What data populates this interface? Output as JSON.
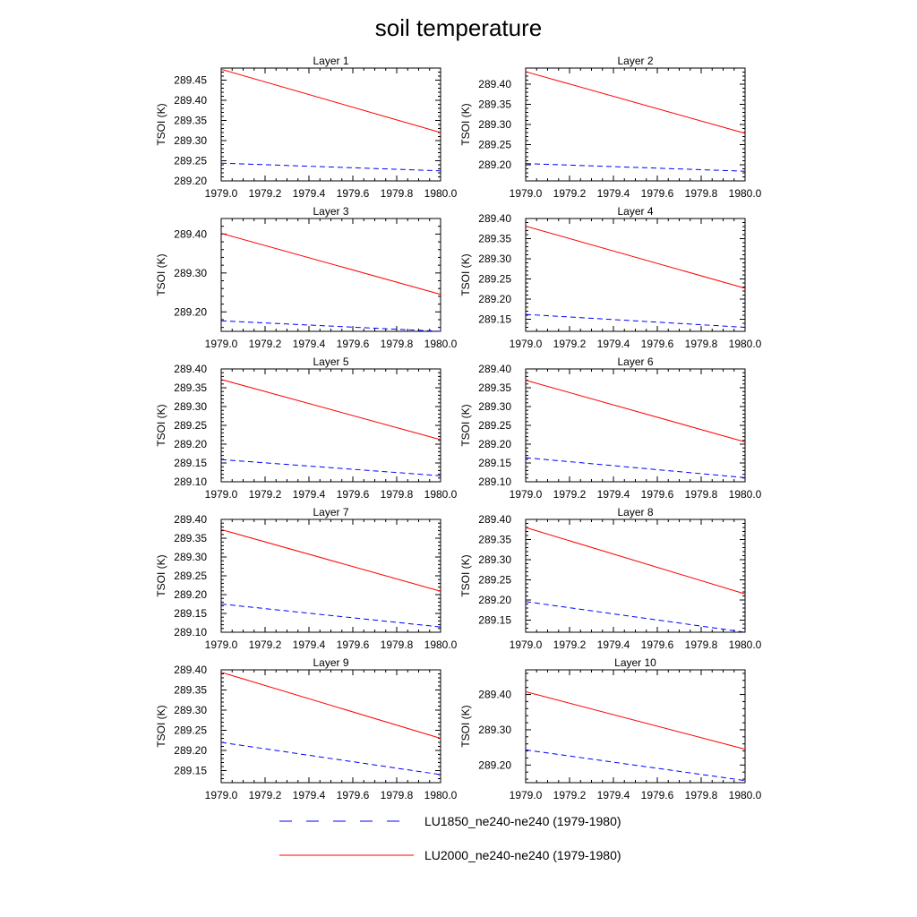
{
  "title": "soil temperature",
  "legend": {
    "placement": "bottom",
    "entries": [
      {
        "label": "LU1850_ne240-ne240 (1979-1980)",
        "color": "#0000ff",
        "dash": "dashed"
      },
      {
        "label": "LU2000_ne240-ne240 (1979-1980)",
        "color": "#ff0000",
        "dash": "solid"
      }
    ]
  },
  "chart_data": [
    {
      "type": "line",
      "title": "Layer 1",
      "ylabel": "TSOI  (K)",
      "x": [
        1979.0,
        1980.0
      ],
      "xlim": [
        1979.0,
        1980.0
      ],
      "xticks": [
        "1979.0",
        "1979.2",
        "1979.4",
        "1979.6",
        "1979.8",
        "1980.0"
      ],
      "ylim": [
        289.2,
        289.48
      ],
      "yticks": [
        "289.20",
        "289.25",
        "289.30",
        "289.35",
        "289.40",
        "289.45"
      ],
      "series": [
        {
          "name": "LU1850_ne240-ne240 (1979-1980)",
          "values": [
            289.244,
            289.225
          ]
        },
        {
          "name": "LU2000_ne240-ne240 (1979-1980)",
          "values": [
            289.477,
            289.32
          ]
        }
      ]
    },
    {
      "type": "line",
      "title": "Layer 2",
      "ylabel": "TSOI  (K)",
      "x": [
        1979.0,
        1980.0
      ],
      "xlim": [
        1979.0,
        1980.0
      ],
      "xticks": [
        "1979.0",
        "1979.2",
        "1979.4",
        "1979.6",
        "1979.8",
        "1980.0"
      ],
      "ylim": [
        289.16,
        289.44
      ],
      "yticks": [
        "289.20",
        "289.25",
        "289.30",
        "289.35",
        "289.40"
      ],
      "series": [
        {
          "name": "LU1850_ne240-ne240 (1979-1980)",
          "values": [
            289.203,
            289.184
          ]
        },
        {
          "name": "LU2000_ne240-ne240 (1979-1980)",
          "values": [
            289.431,
            289.278
          ]
        }
      ]
    },
    {
      "type": "line",
      "title": "Layer 3",
      "ylabel": "TSOI  (K)",
      "x": [
        1979.0,
        1980.0
      ],
      "xlim": [
        1979.0,
        1980.0
      ],
      "xticks": [
        "1979.0",
        "1979.2",
        "1979.4",
        "1979.6",
        "1979.8",
        "1980.0"
      ],
      "ylim": [
        289.15,
        289.44
      ],
      "yticks": [
        "289.20",
        "289.30",
        "289.40"
      ],
      "series": [
        {
          "name": "LU1850_ne240-ne240 (1979-1980)",
          "values": [
            289.177,
            289.15
          ]
        },
        {
          "name": "LU2000_ne240-ne240 (1979-1980)",
          "values": [
            289.402,
            289.245
          ]
        }
      ]
    },
    {
      "type": "line",
      "title": "Layer 4",
      "ylabel": "TSOI  (K)",
      "x": [
        1979.0,
        1980.0
      ],
      "xlim": [
        1979.0,
        1980.0
      ],
      "xticks": [
        "1979.0",
        "1979.2",
        "1979.4",
        "1979.6",
        "1979.8",
        "1980.0"
      ],
      "ylim": [
        289.12,
        289.4
      ],
      "yticks": [
        "289.15",
        "289.20",
        "289.25",
        "289.30",
        "289.35",
        "289.40"
      ],
      "series": [
        {
          "name": "LU1850_ne240-ne240 (1979-1980)",
          "values": [
            289.162,
            289.13
          ]
        },
        {
          "name": "LU2000_ne240-ne240 (1979-1980)",
          "values": [
            289.381,
            289.227
          ]
        }
      ]
    },
    {
      "type": "line",
      "title": "Layer 5",
      "ylabel": "TSOI  (K)",
      "x": [
        1979.0,
        1980.0
      ],
      "xlim": [
        1979.0,
        1980.0
      ],
      "xticks": [
        "1979.0",
        "1979.2",
        "1979.4",
        "1979.6",
        "1979.8",
        "1980.0"
      ],
      "ylim": [
        289.1,
        289.4
      ],
      "yticks": [
        "289.10",
        "289.15",
        "289.20",
        "289.25",
        "289.30",
        "289.35",
        "289.40"
      ],
      "series": [
        {
          "name": "LU1850_ne240-ne240 (1979-1980)",
          "values": [
            289.159,
            289.116
          ]
        },
        {
          "name": "LU2000_ne240-ne240 (1979-1980)",
          "values": [
            289.372,
            289.212
          ]
        }
      ]
    },
    {
      "type": "line",
      "title": "Layer 6",
      "ylabel": "TSOI  (K)",
      "x": [
        1979.0,
        1980.0
      ],
      "xlim": [
        1979.0,
        1980.0
      ],
      "xticks": [
        "1979.0",
        "1979.2",
        "1979.4",
        "1979.6",
        "1979.8",
        "1980.0"
      ],
      "ylim": [
        289.1,
        289.4
      ],
      "yticks": [
        "289.10",
        "289.15",
        "289.20",
        "289.25",
        "289.30",
        "289.35",
        "289.40"
      ],
      "series": [
        {
          "name": "LU1850_ne240-ne240 (1979-1980)",
          "values": [
            289.164,
            289.111
          ]
        },
        {
          "name": "LU2000_ne240-ne240 (1979-1980)",
          "values": [
            289.37,
            289.206
          ]
        }
      ]
    },
    {
      "type": "line",
      "title": "Layer 7",
      "ylabel": "TSOI  (K)",
      "x": [
        1979.0,
        1980.0
      ],
      "xlim": [
        1979.0,
        1980.0
      ],
      "xticks": [
        "1979.0",
        "1979.2",
        "1979.4",
        "1979.6",
        "1979.8",
        "1980.0"
      ],
      "ylim": [
        289.1,
        289.4
      ],
      "yticks": [
        "289.10",
        "289.15",
        "289.20",
        "289.25",
        "289.30",
        "289.35",
        "289.40"
      ],
      "series": [
        {
          "name": "LU1850_ne240-ne240 (1979-1980)",
          "values": [
            289.175,
            289.114
          ]
        },
        {
          "name": "LU2000_ne240-ne240 (1979-1980)",
          "values": [
            289.373,
            289.209
          ]
        }
      ]
    },
    {
      "type": "line",
      "title": "Layer 8",
      "ylabel": "TSOI  (K)",
      "x": [
        1979.0,
        1980.0
      ],
      "xlim": [
        1979.0,
        1980.0
      ],
      "xticks": [
        "1979.0",
        "1979.2",
        "1979.4",
        "1979.6",
        "1979.8",
        "1980.0"
      ],
      "ylim": [
        289.12,
        289.4
      ],
      "yticks": [
        "289.15",
        "289.20",
        "289.25",
        "289.30",
        "289.35",
        "289.40"
      ],
      "series": [
        {
          "name": "LU1850_ne240-ne240 (1979-1980)",
          "values": [
            289.196,
            289.12
          ]
        },
        {
          "name": "LU2000_ne240-ne240 (1979-1980)",
          "values": [
            289.38,
            289.215
          ]
        }
      ]
    },
    {
      "type": "line",
      "title": "Layer 9",
      "ylabel": "TSOI  (K)",
      "x": [
        1979.0,
        1980.0
      ],
      "xlim": [
        1979.0,
        1980.0
      ],
      "xticks": [
        "1979.0",
        "1979.2",
        "1979.4",
        "1979.6",
        "1979.8",
        "1980.0"
      ],
      "ylim": [
        289.12,
        289.4
      ],
      "yticks": [
        "289.15",
        "289.20",
        "289.25",
        "289.30",
        "289.35",
        "289.40"
      ],
      "series": [
        {
          "name": "LU1850_ne240-ne240 (1979-1980)",
          "values": [
            289.22,
            289.14
          ]
        },
        {
          "name": "LU2000_ne240-ne240 (1979-1980)",
          "values": [
            289.394,
            289.23
          ]
        }
      ]
    },
    {
      "type": "line",
      "title": "Layer 10",
      "ylabel": "TSOI  (K)",
      "x": [
        1979.0,
        1980.0
      ],
      "xlim": [
        1979.0,
        1980.0
      ],
      "xticks": [
        "1979.0",
        "1979.2",
        "1979.4",
        "1979.6",
        "1979.8",
        "1980.0"
      ],
      "ylim": [
        289.15,
        289.47
      ],
      "yticks": [
        "289.20",
        "289.30",
        "289.40"
      ],
      "series": [
        {
          "name": "LU1850_ne240-ne240 (1979-1980)",
          "values": [
            289.243,
            289.156
          ]
        },
        {
          "name": "LU2000_ne240-ne240 (1979-1980)",
          "values": [
            289.408,
            289.245
          ]
        }
      ]
    }
  ]
}
